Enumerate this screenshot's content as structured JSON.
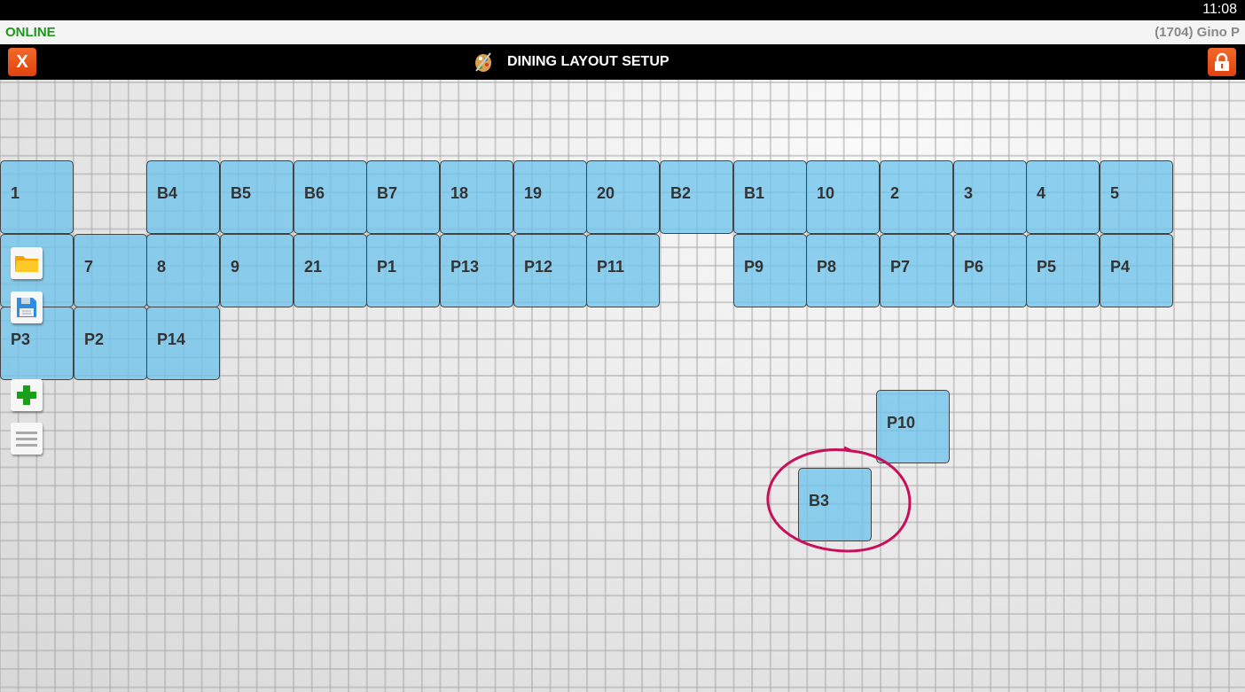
{
  "status": {
    "time": "11:08"
  },
  "info": {
    "connection": "ONLINE",
    "user": "(1704) Gino P"
  },
  "header": {
    "title": "DINING LAYOUT SETUP",
    "close_label": "X",
    "icons": {
      "close": "close-x-icon",
      "palette": "palette-icon",
      "lock": "lock-icon"
    }
  },
  "colors": {
    "accent": "#e8521a",
    "online": "#1a9a1a",
    "tile": "#7fc9eb",
    "highlight_circle": "#c8105a"
  },
  "tools": [
    {
      "name": "open",
      "icon": "folder-icon"
    },
    {
      "name": "save",
      "icon": "floppy-disk-icon"
    },
    {
      "name": "add",
      "icon": "plus-icon"
    },
    {
      "name": "menu",
      "icon": "menu-icon"
    }
  ],
  "tables": {
    "row1": [
      "1",
      "B4",
      "B5",
      "B6",
      "B7",
      "18",
      "19",
      "20",
      "B2",
      "B1",
      "10",
      "2",
      "3",
      "4",
      "5"
    ],
    "row2": [
      "",
      "7",
      "8",
      "9",
      "21",
      "P1",
      "P13",
      "P12",
      "P11",
      "P9",
      "P8",
      "P7",
      "P6",
      "P5",
      "P4"
    ],
    "row3": [
      "P3",
      "P2",
      "P14"
    ],
    "loose": [
      "P10",
      "B3"
    ]
  },
  "annotation": {
    "circled_table": "B3"
  }
}
